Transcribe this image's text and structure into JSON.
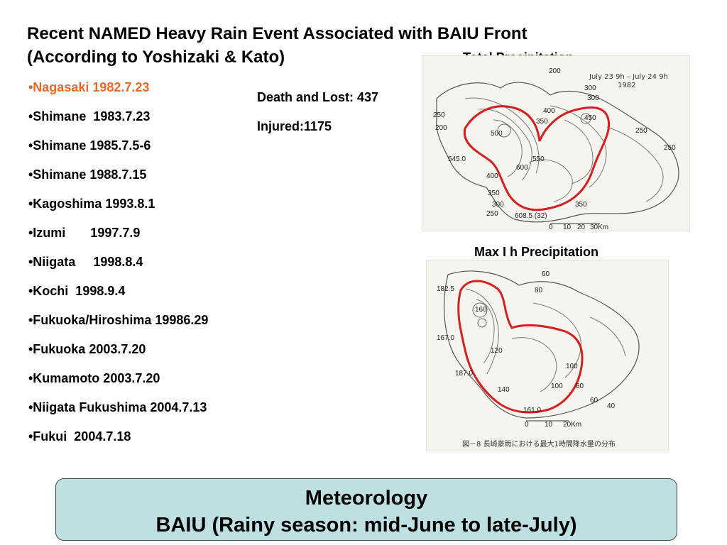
{
  "title": {
    "line1": "Recent NAMED Heavy Rain Event Associated with BAIU Front",
    "line2": "(According to Yoshizaki & Kato)"
  },
  "events": [
    "•Nagasaki 1982.7.23",
    "•Shimane  1983.7.23",
    "•Shimane 1985.7.5-6",
    "•Shimane 1988.7.15",
    "•Kagoshima 1993.8.1",
    "•Izumi       1997.7.9",
    "•Niigata     1998.8.4",
    "•Kochi  1998.9.4",
    "•Fukuoka/Hiroshima 19986.29",
    "•Fukuoka 2003.7.20",
    "•Kumamoto 2003.7.20",
    "•Niigata Fukushima 2004.7.13",
    "•Fukui  2004.7.18"
  ],
  "highlight_color": "#e8692a",
  "stats": {
    "death": "Death and Lost: 437",
    "injured": "Injured:1175"
  },
  "map1": {
    "caption": "Total Precipitation",
    "period": "July 23 9h – July 24 9h",
    "year": "1982",
    "contours": [
      "200",
      "300",
      "300",
      "350",
      "400",
      "450",
      "500",
      "550",
      "600",
      "400",
      "350",
      "300",
      "250",
      "250",
      "250",
      "350",
      "250",
      "200",
      "545.0",
      "608.5 (32)"
    ],
    "scale": [
      "0",
      "10",
      "20",
      "30Km"
    ]
  },
  "map2": {
    "caption": "Max I h Precipitation",
    "contours": [
      "60",
      "80",
      "100",
      "120",
      "140",
      "160",
      "182.5",
      "167.0",
      "187.0",
      "161.0",
      "100",
      "80",
      "60",
      "40"
    ],
    "scale": [
      "0",
      "10",
      "20Km"
    ],
    "figure_caption": "図－8  長崎豪雨における最大1時間降水量の分布"
  },
  "footer": {
    "line1": "Meteorology",
    "line2": "BAIU (Rainy season: mid-June to late-July)"
  },
  "colors": {
    "footer_bg": "#bfe0e2",
    "outline_red": "#d42020"
  }
}
